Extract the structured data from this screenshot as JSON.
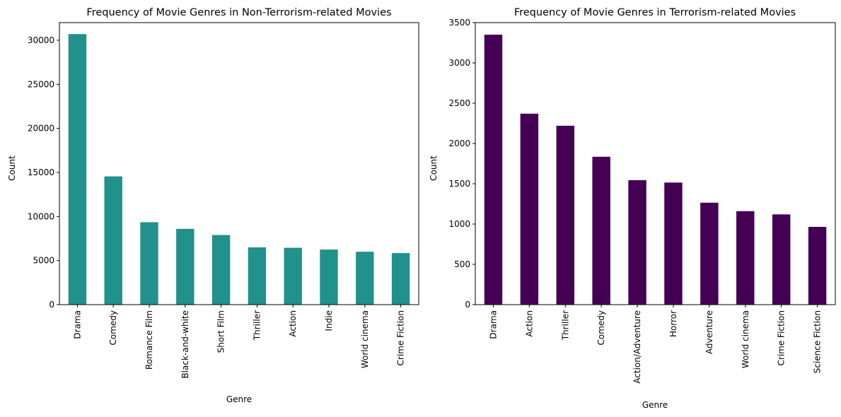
{
  "chart_data": [
    {
      "type": "bar",
      "title": "Frequency of Movie Genres in Non-Terrorism-related Movies",
      "xlabel": "Genre",
      "ylabel": "Count",
      "ylim": [
        0,
        32000
      ],
      "yticks": [
        0,
        5000,
        10000,
        15000,
        20000,
        25000,
        30000
      ],
      "color": "#21918c",
      "grid": false,
      "categories": [
        "Drama",
        "Comedy",
        "Romance Film",
        "Black-and-white",
        "Short Film",
        "Thriller",
        "Action",
        "Indie",
        "World cinema",
        "Crime Fiction"
      ],
      "values": [
        30700,
        14550,
        9350,
        8600,
        7900,
        6500,
        6450,
        6250,
        6000,
        5850
      ]
    },
    {
      "type": "bar",
      "title": "Frequency of Movie Genres in Terrorism-related Movies",
      "xlabel": "Genre",
      "ylabel": "Count",
      "ylim": [
        0,
        3500
      ],
      "yticks": [
        0,
        500,
        1000,
        1500,
        2000,
        2500,
        3000,
        3500
      ],
      "color": "#440154",
      "grid": false,
      "categories": [
        "Drama",
        "Action",
        "Thriller",
        "Comedy",
        "Action/Adventure",
        "Horror",
        "Adventure",
        "World cinema",
        "Crime Fiction",
        "Science Fiction"
      ],
      "values": [
        3350,
        2370,
        2220,
        1835,
        1545,
        1515,
        1265,
        1160,
        1120,
        965
      ]
    }
  ]
}
